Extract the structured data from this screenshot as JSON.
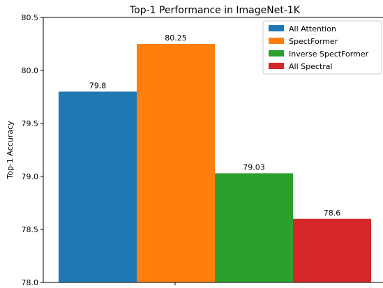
{
  "chart_data": {
    "type": "bar",
    "title": "Top-1 Performance in ImageNet-1K",
    "xlabel": "",
    "ylabel": "Top-1 Accuracy",
    "ylim": [
      78.0,
      80.5
    ],
    "yticks": [
      78.0,
      78.5,
      79.0,
      79.5,
      80.0,
      80.5
    ],
    "ytick_labels": [
      "78.0",
      "78.5",
      "79.0",
      "79.5",
      "80.0",
      "80.5"
    ],
    "grid": false,
    "legend_position": "top-right",
    "series": [
      {
        "name": "All Attention",
        "value": 79.8,
        "label": "79.8",
        "color": "#1f77b4"
      },
      {
        "name": "SpectFormer",
        "value": 80.25,
        "label": "80.25",
        "color": "#ff7f0e"
      },
      {
        "name": "Inverse SpectFormer",
        "value": 79.03,
        "label": "79.03",
        "color": "#2ca02c"
      },
      {
        "name": "All Spectral",
        "value": 78.6,
        "label": "78.6",
        "color": "#d62728"
      }
    ]
  }
}
